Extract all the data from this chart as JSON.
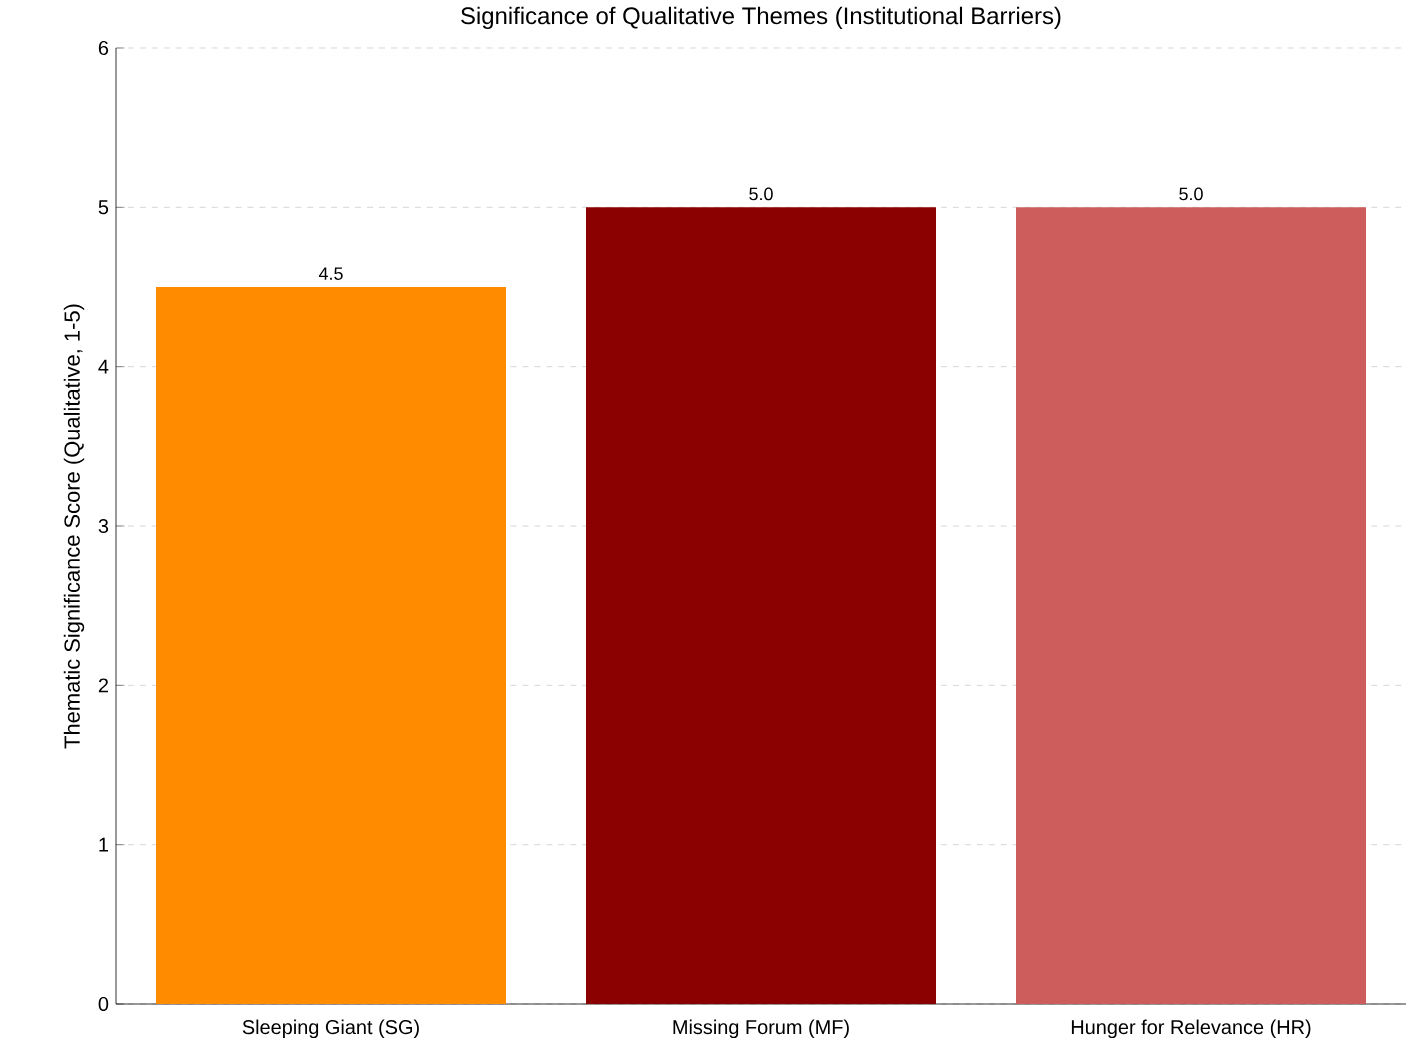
{
  "chart_data": {
    "type": "bar",
    "title": "Significance of Qualitative Themes (Institutional Barriers)",
    "ylabel": "Thematic Significance Score (Qualitative, 1-5)",
    "categories": [
      "Sleeping Giant (SG)",
      "Missing Forum (MF)",
      "Hunger for Relevance (HR)"
    ],
    "values": [
      4.5,
      5.0,
      5.0
    ],
    "colors": [
      "#ff8c00",
      "#8b0000",
      "#cd5c5c"
    ],
    "value_labels": [
      "4.5",
      "5.0",
      "5.0"
    ],
    "ylim": [
      0,
      6
    ],
    "yticks": [
      0,
      1,
      2,
      3,
      4,
      5,
      6
    ],
    "grid": "y"
  }
}
